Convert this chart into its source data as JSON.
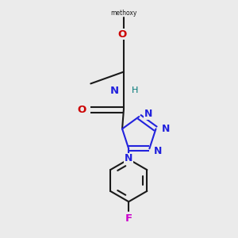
{
  "bg_color": "#ebebeb",
  "bond_color": "#1a1a1a",
  "N_color": "#2222dd",
  "O_color": "#cc0000",
  "F_color": "#cc00cc",
  "H_color": "#007777",
  "lw": 1.5,
  "fs": 9.5,
  "xlim": [
    0.0,
    1.0
  ],
  "ylim": [
    0.0,
    1.0
  ]
}
